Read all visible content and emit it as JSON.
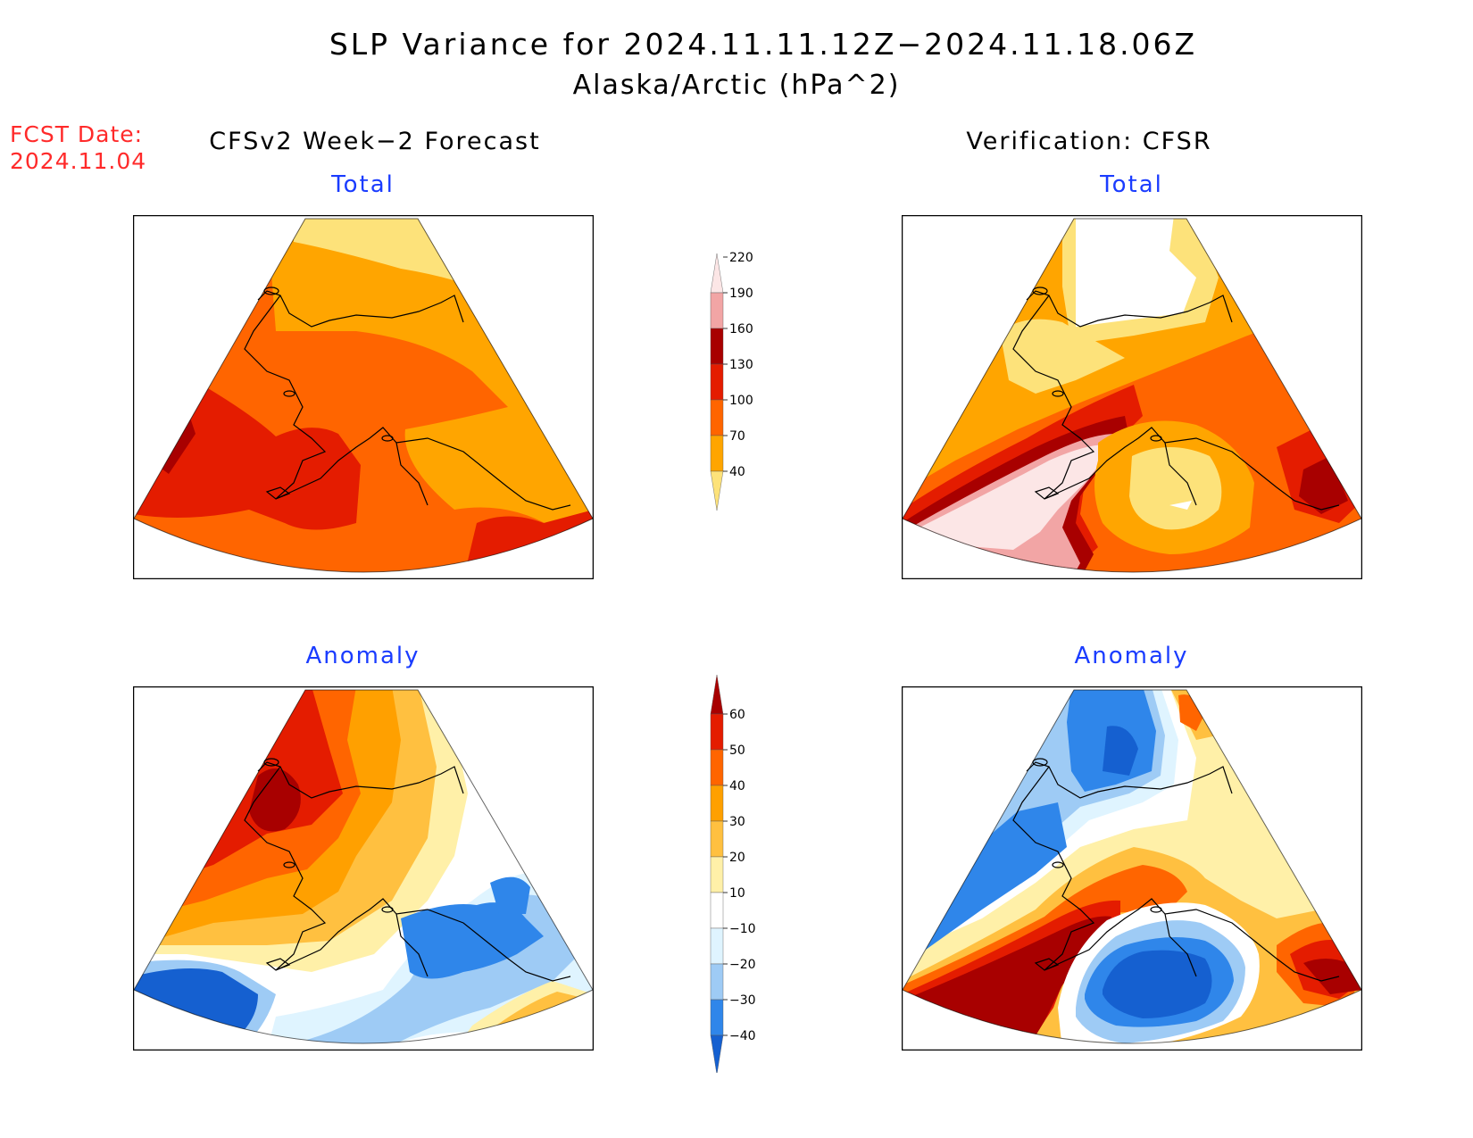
{
  "title": {
    "line1": "SLP Variance for 2024.11.11.12Z−2024.11.18.06Z",
    "line2": "Alaska/Arctic (hPa^2)"
  },
  "forecast_date": {
    "label": "FCST Date:",
    "value": "2024.11.04"
  },
  "columns": {
    "left": "CFSv2 Week−2 Forecast",
    "right": "Verification: CFSR"
  },
  "panels": {
    "top_left": "Total",
    "top_right": "Total",
    "bottom_left": "Anomaly",
    "bottom_right": "Anomaly"
  },
  "colorbars": {
    "total": {
      "levels": [
        "40",
        "70",
        "100",
        "130",
        "160",
        "190",
        "220"
      ],
      "colors": [
        "#fde27a",
        "#ffa500",
        "#ff6500",
        "#e41c00",
        "#a80000",
        "#f2a5a5",
        "#fce6e6"
      ]
    },
    "anomaly": {
      "levels": [
        "−40",
        "−30",
        "−20",
        "−10",
        "10",
        "20",
        "30",
        "40",
        "50",
        "60"
      ],
      "colors": [
        "#1560d0",
        "#2f86ea",
        "#9ecbf5",
        "#dff4ff",
        "#ffffff",
        "#fff0a8",
        "#ffc040",
        "#ffa000",
        "#ff6500",
        "#e41c00",
        "#a80000"
      ]
    }
  }
}
